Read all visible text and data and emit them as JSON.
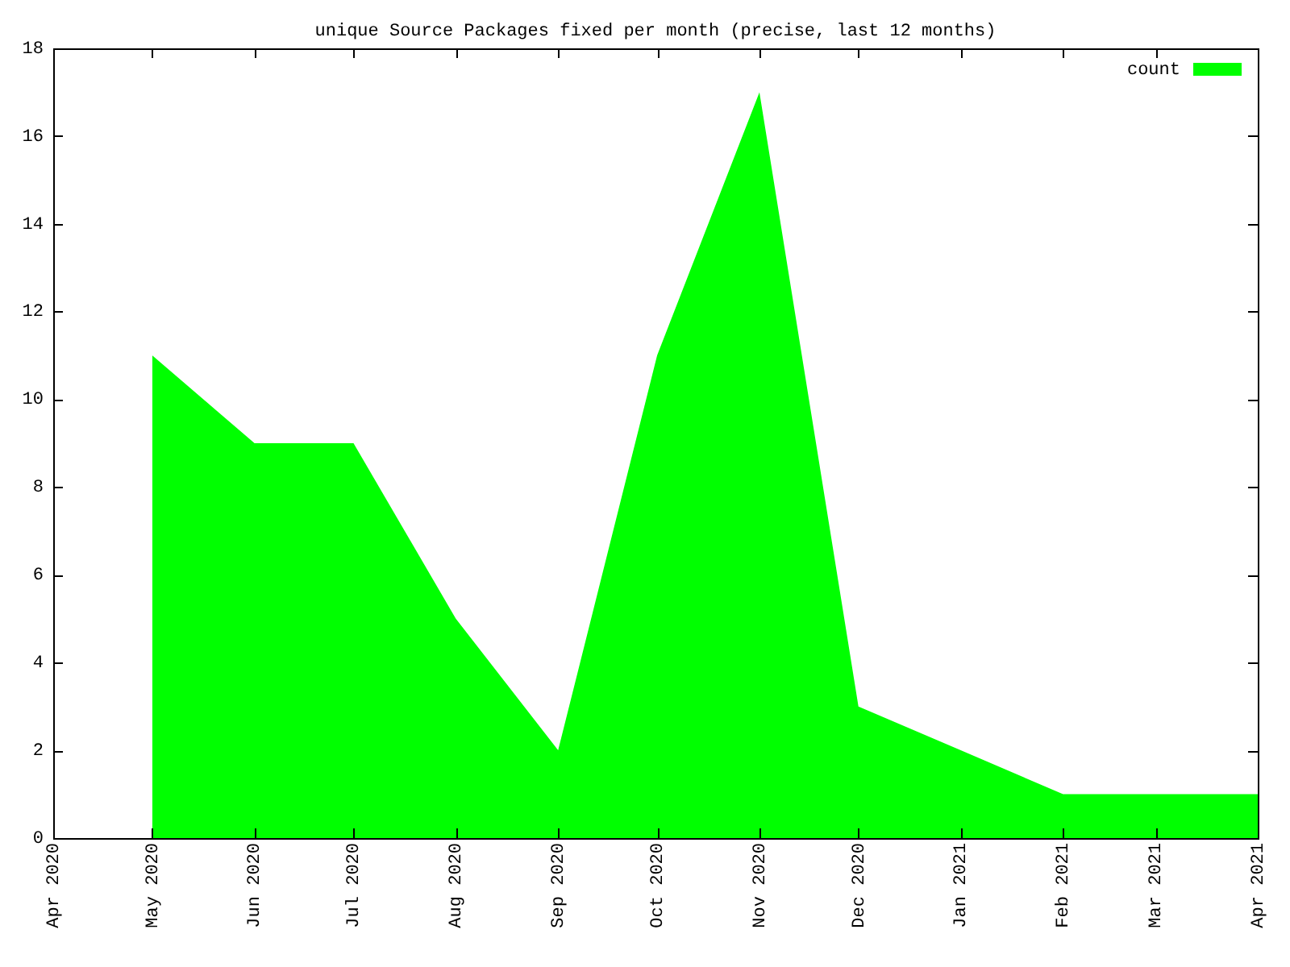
{
  "chart_data": {
    "type": "area",
    "title": "unique Source Packages fixed per month (precise, last 12 months)",
    "x": [
      "2020-05",
      "2020-06",
      "2020-07",
      "2020-08",
      "2020-09",
      "2020-10",
      "2020-11",
      "2020-12",
      "2021-01",
      "2021-02",
      "2021-03",
      "2021-04"
    ],
    "series": [
      {
        "name": "count",
        "color": "#00ff00",
        "values": [
          11,
          9,
          9,
          5,
          2,
          11,
          17,
          3,
          2,
          1,
          1,
          1
        ]
      }
    ],
    "xlim": [
      "2020-04",
      "2021-04"
    ],
    "xticks": [
      {
        "value": "2020-04",
        "label": "Apr 2020"
      },
      {
        "value": "2020-05",
        "label": "May 2020"
      },
      {
        "value": "2020-06",
        "label": "Jun 2020"
      },
      {
        "value": "2020-07",
        "label": "Jul 2020"
      },
      {
        "value": "2020-08",
        "label": "Aug 2020"
      },
      {
        "value": "2020-09",
        "label": "Sep 2020"
      },
      {
        "value": "2020-10",
        "label": "Oct 2020"
      },
      {
        "value": "2020-11",
        "label": "Nov 2020"
      },
      {
        "value": "2020-12",
        "label": "Dec 2020"
      },
      {
        "value": "2021-01",
        "label": "Jan 2021"
      },
      {
        "value": "2021-02",
        "label": "Feb 2021"
      },
      {
        "value": "2021-03",
        "label": "Mar 2021"
      },
      {
        "value": "2021-04",
        "label": "Apr 2021"
      }
    ],
    "ylim": [
      0,
      18
    ],
    "yticks": [
      0,
      2,
      4,
      6,
      8,
      10,
      12,
      14,
      16,
      18
    ],
    "grid": false,
    "legend": "top right"
  }
}
